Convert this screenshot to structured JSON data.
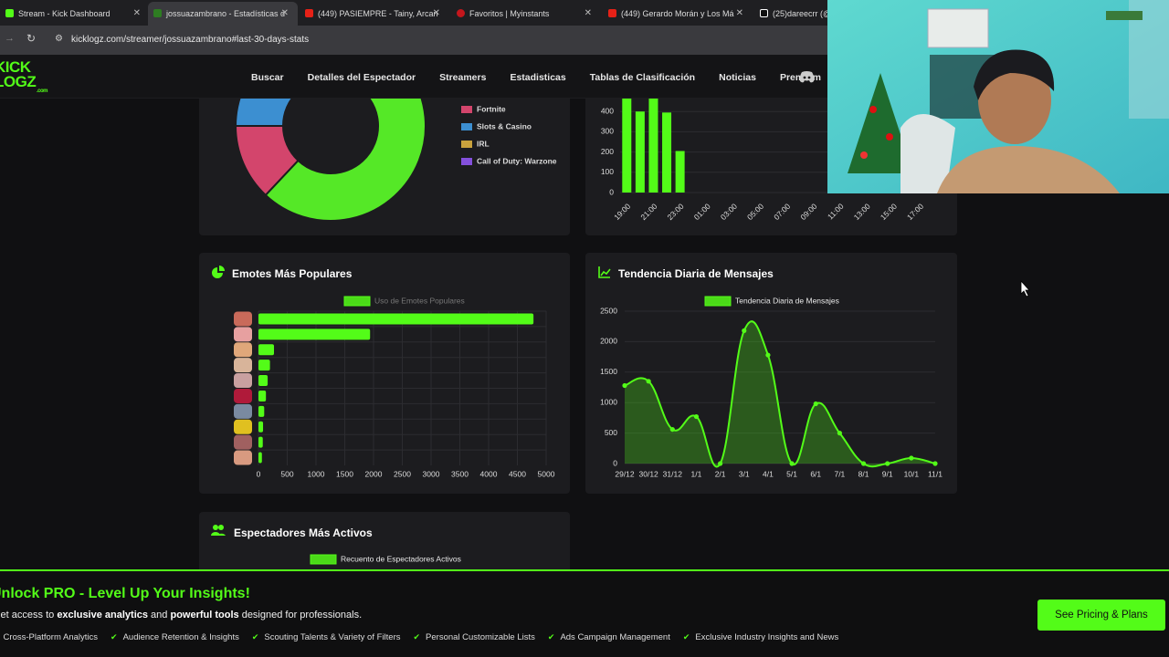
{
  "browser": {
    "tabs": [
      "Stream - Kick Dashboard",
      "jossuazambrano - Estadísticas d",
      "(449) PASIEMPRE - Tainy, Arcan",
      "Favoritos | Myinstants",
      "(449) Gerardo Morán y Los Má",
      "(25)dareecrr (@"
    ],
    "url": "kicklogz.com/streamer/jossuazambrano#last-30-days-stats"
  },
  "nav": {
    "logo": [
      "KICK",
      "LOGZ"
    ],
    "logo_suffix": ".com",
    "items": [
      "Buscar",
      "Detalles del Espectador",
      "Streamers",
      "Estadisticas",
      "Tablas de Clasificación",
      "Noticias",
      "Premium"
    ]
  },
  "chart_data": [
    {
      "type": "doughnut",
      "categories": [
        null,
        "Fortnite",
        "Slots & Casino",
        "IRL",
        "Call of Duty: Warzone"
      ],
      "values": [
        62,
        13,
        10,
        8,
        7
      ],
      "colors": [
        "#55e827",
        "#d3456c",
        "#3c8fd1",
        "#c9a23d",
        "#8450dc"
      ]
    },
    {
      "type": "bar",
      "categories": [
        "19:00",
        null,
        "21:00",
        null,
        "23:00",
        null,
        "01:00",
        null,
        "03:00",
        null,
        "05:00",
        null,
        "07:00",
        null,
        "09:00",
        null,
        "11:00",
        null,
        "13:00",
        null,
        "15:00",
        null,
        "17:00",
        null
      ],
      "values": [
        480,
        400,
        470,
        395,
        205,
        0,
        0,
        0,
        0,
        0,
        0,
        0,
        0,
        0,
        0,
        0,
        0,
        0,
        0,
        0,
        0,
        0,
        0,
        0
      ],
      "color": "#53fc18",
      "ylim": [
        0,
        500
      ],
      "yticks": [
        0,
        100,
        200,
        300,
        400,
        500
      ]
    },
    {
      "type": "hbar",
      "title": "Emotes Más Populares",
      "categories": [
        null,
        null,
        null,
        null,
        null,
        null,
        null,
        null,
        null,
        null
      ],
      "series": [
        {
          "name": "Uso de Emotes Populares",
          "color": "#53fc18",
          "values": [
            4780,
            1940,
            270,
            200,
            160,
            130,
            100,
            80,
            75,
            60
          ]
        }
      ],
      "xlim": [
        0,
        5000
      ],
      "xticks": [
        0,
        500,
        1000,
        1500,
        2000,
        2500,
        3000,
        3500,
        4000,
        4500,
        5000
      ],
      "grid": true
    },
    {
      "type": "line",
      "title": "Tendencia Diaria de Mensajes",
      "categories": [
        "29/12",
        "30/12",
        "31/12",
        "1/1",
        "2/1",
        "3/1",
        "4/1",
        "5/1",
        "6/1",
        "7/1",
        "8/1",
        "9/1",
        "10/1",
        "11/1"
      ],
      "series": [
        {
          "name": "Tendencia Diaria de Mensajes",
          "color": "#53fc18",
          "values": [
            1280,
            1350,
            560,
            770,
            0,
            2180,
            1780,
            0,
            980,
            500,
            0,
            0,
            90,
            0
          ]
        }
      ],
      "ylim": [
        0,
        2500
      ],
      "yticks": [
        0,
        500,
        1000,
        1500,
        2000,
        2500
      ],
      "grid": true
    },
    {
      "type": "bar",
      "title": "Espectadores Más Activos",
      "series": [
        {
          "name": "Recuento de Espectadores Activos",
          "color": "#53fc18"
        }
      ]
    }
  ],
  "promo": {
    "title": "Unlock PRO - Level Up Your Insights!",
    "description": [
      "Get access to ",
      "exclusive analytics",
      " and ",
      "powerful tools",
      " designed for professionals."
    ],
    "features": [
      "Cross-Platform Analytics",
      "Audience Retention & Insights",
      "Scouting Talents & Variety of Filters",
      "Personal Customizable Lists",
      "Ads Campaign Management",
      "Exclusive Industry Insights and News"
    ],
    "button": "See Pricing & Plans"
  }
}
